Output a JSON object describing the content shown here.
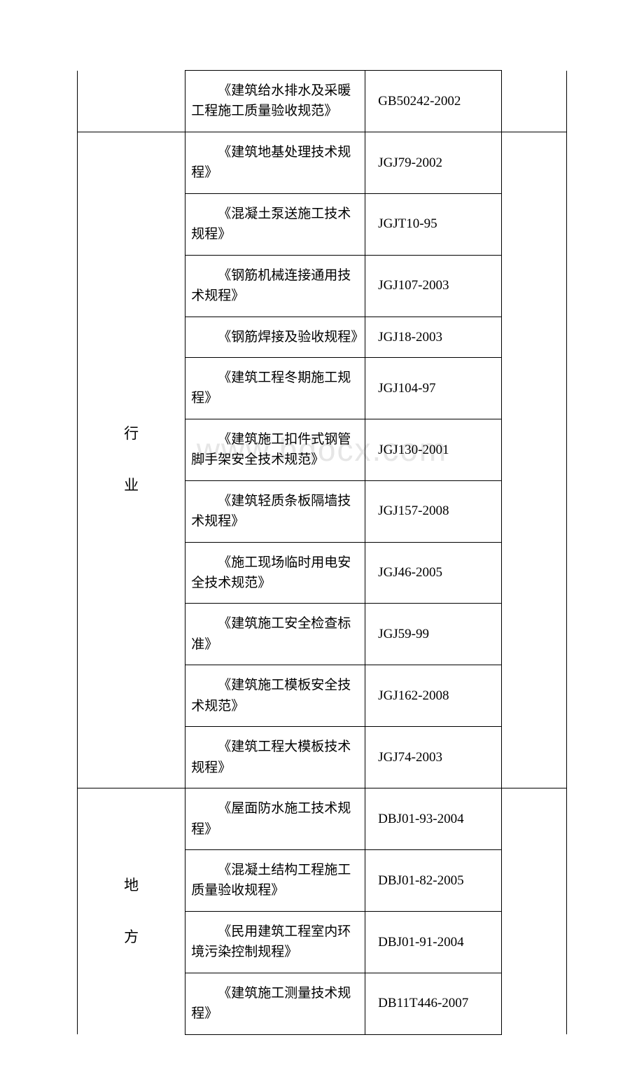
{
  "watermark": "www.bdocx.com",
  "table": {
    "top_row": {
      "name": "《建筑给水排水及采暖工程施工质量验收规范》",
      "code": "GB50242-2002"
    },
    "section_industry": {
      "category_lines": [
        "行",
        "业"
      ],
      "rows": [
        {
          "name": "《建筑地基处理技术规程》",
          "code": "JGJ79-2002"
        },
        {
          "name": "《混凝土泵送施工技术规程》",
          "code": "JGJT10-95"
        },
        {
          "name": "《钢筋机械连接通用技术规程》",
          "code": "JGJ107-2003"
        },
        {
          "name": "《钢筋焊接及验收规程》",
          "code": "JGJ18-2003"
        },
        {
          "name": "《建筑工程冬期施工规程》",
          "code": "JGJ104-97"
        },
        {
          "name": "《建筑施工扣件式钢管脚手架安全技术规范》",
          "code": "JGJ130-2001"
        },
        {
          "name": "《建筑轻质条板隔墙技术规程》",
          "code": "JGJ157-2008"
        },
        {
          "name": "《施工现场临时用电安全技术规范》",
          "code": "JGJ46-2005"
        },
        {
          "name": "《建筑施工安全检查标准》",
          "code": "JGJ59-99"
        },
        {
          "name": "《建筑施工模板安全技术规范》",
          "code": "JGJ162-2008"
        },
        {
          "name": "《建筑工程大模板技术规程》",
          "code": "JGJ74-2003"
        }
      ]
    },
    "section_local": {
      "category_lines": [
        "地",
        "方"
      ],
      "rows": [
        {
          "name": "《屋面防水施工技术规程》",
          "code": "DBJ01-93-2004"
        },
        {
          "name": "《混凝土结构工程施工质量验收规程》",
          "code": "DBJ01-82-2005"
        },
        {
          "name": "《民用建筑工程室内环境污染控制规程》",
          "code": "DBJ01-91-2004"
        },
        {
          "name": "《建筑施工测量技术规程》",
          "code": "DB11T446-2007"
        }
      ]
    }
  }
}
